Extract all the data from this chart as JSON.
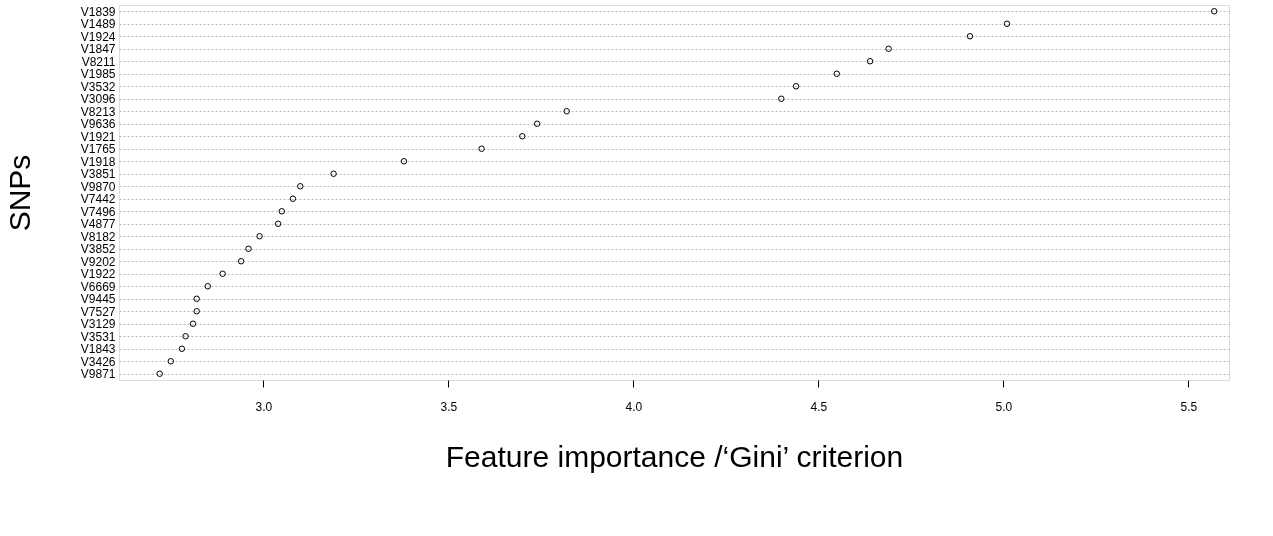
{
  "chart_data": {
    "type": "scatter",
    "xlabel": "Feature importance /‘Gini’ criterion",
    "ylabel": "SNPs",
    "categories": [
      "V1839",
      "V1489",
      "V1924",
      "V1847",
      "V8211",
      "V1985",
      "V3532",
      "V3096",
      "V8213",
      "V9636",
      "V1921",
      "V1765",
      "V1918",
      "V3851",
      "V9870",
      "V7442",
      "V7496",
      "V4877",
      "V8182",
      "V3852",
      "V9202",
      "V1922",
      "V6669",
      "V9445",
      "V7527",
      "V3129",
      "V3531",
      "V1843",
      "V3426",
      "V9871"
    ],
    "orientation": "horizontal",
    "values": [
      5.57,
      5.01,
      4.91,
      4.69,
      4.64,
      4.55,
      4.44,
      4.4,
      3.82,
      3.74,
      3.7,
      3.59,
      3.38,
      3.19,
      3.1,
      3.08,
      3.05,
      3.04,
      2.99,
      2.96,
      2.94,
      2.89,
      2.85,
      2.82,
      2.82,
      2.81,
      2.79,
      2.78,
      2.75,
      2.72
    ],
    "color": "#000000",
    "marker": "circle",
    "grid": "y",
    "xlim": [
      2.61,
      5.61
    ],
    "xticks": [
      {
        "value": 3,
        "label": "3.0"
      },
      3.5,
      {
        "value": 4,
        "label": "4.0"
      },
      4.5,
      {
        "value": 5,
        "label": "5.0"
      },
      5.5
    ]
  }
}
